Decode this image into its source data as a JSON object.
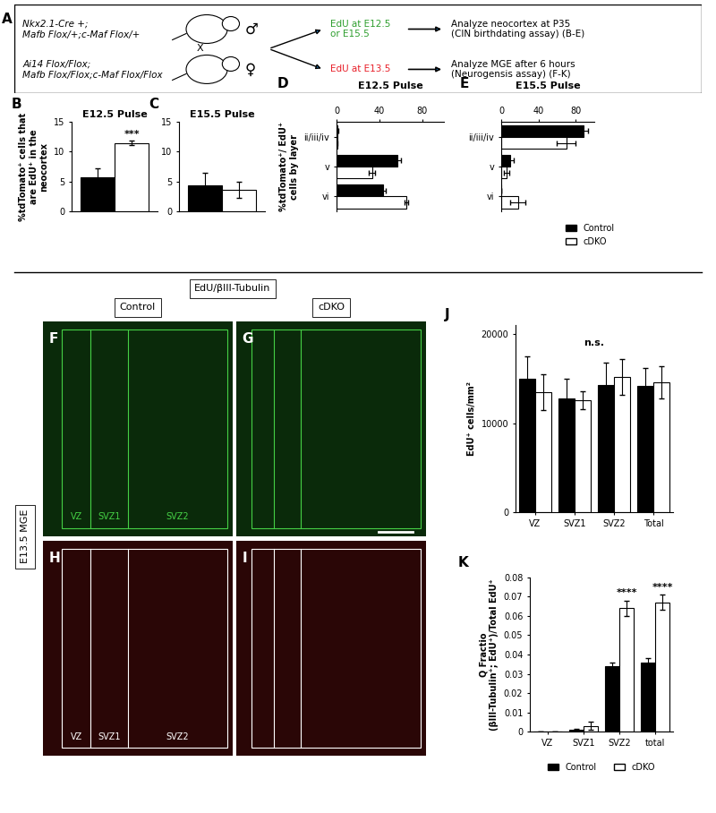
{
  "schematic": {
    "panel": "A",
    "male": {
      "genotype": "Nkx2.1-Cre +;\nMafb Flox/+;c-Maf Flox/+",
      "symbol": "♂"
    },
    "cross": "X",
    "female": {
      "genotype": "Ai14 Flox/Flox;\nMafb Flox/Flox;c-Maf Flox/Flox",
      "symbol": "♀"
    },
    "pulses": [
      {
        "text": "EdU at E12.5\nor E15.5",
        "color": "#2e9e2e",
        "result": "Analyze neocortex at P35\n(CIN birthdating assay) (B-E)"
      },
      {
        "text": "EdU at E13.5",
        "color": "#e8202a",
        "result": "Analyze MGE after 6 hours\n(Neurogensis assay) (F-K)"
      }
    ]
  },
  "images": {
    "header": "EdU/βIII-Tubulin",
    "columns": [
      "Control",
      "cDKO"
    ],
    "row_label": "E13.5 MGE",
    "panels": [
      {
        "panel": "F",
        "zones": [
          "VZ",
          "SVZ1",
          "SVZ2"
        ]
      },
      {
        "panel": "G"
      },
      {
        "panel": "H",
        "zones": [
          "VZ",
          "SVZ1",
          "SVZ2"
        ]
      },
      {
        "panel": "I"
      }
    ]
  },
  "chart_data": [
    {
      "panel": "B",
      "type": "bar",
      "title": "E12.5 Pulse",
      "ylabel": "%tdTomato⁺ cells that\nare EdU⁺ in the\nneocortex",
      "categories": [
        null
      ],
      "series": [
        {
          "name": "Control",
          "color": "#000000",
          "values": [
            5.7
          ],
          "errors": [
            1.5
          ]
        },
        {
          "name": "cDKO",
          "color": "#ffffff",
          "values": [
            11.5
          ],
          "errors": [
            0.4
          ]
        }
      ],
      "ylim": [
        0,
        15
      ],
      "yticks": [
        0,
        5,
        10,
        15
      ],
      "annotations": [
        {
          "text": "***",
          "series": "cDKO",
          "index": 0
        }
      ]
    },
    {
      "panel": "C",
      "type": "bar",
      "title": "E15.5 Pulse",
      "categories": [
        null
      ],
      "series": [
        {
          "name": "Control",
          "color": "#000000",
          "values": [
            4.3
          ],
          "errors": [
            2.2
          ]
        },
        {
          "name": "cDKO",
          "color": "#ffffff",
          "values": [
            3.6
          ],
          "errors": [
            1.3
          ]
        }
      ],
      "ylim": [
        0,
        15
      ],
      "yticks": [
        0,
        5,
        10,
        15
      ]
    },
    {
      "panel": "D",
      "type": "bar",
      "orientation": "horizontal",
      "title": "E12.5 Pulse",
      "ylabel": "%tdTomato⁺/ EdU⁺\ncells by layer",
      "categories": [
        "ii/iii/iv",
        "v",
        "vi"
      ],
      "series": [
        {
          "name": "Control",
          "color": "#000000",
          "values": [
            1,
            57,
            43
          ],
          "errors": [
            0.5,
            3,
            3
          ]
        },
        {
          "name": "cDKO",
          "color": "#ffffff",
          "values": [
            0.5,
            33,
            65
          ],
          "errors": [
            0.5,
            3,
            2
          ]
        }
      ],
      "xlim": [
        0,
        100
      ],
      "xticks": [
        0,
        40,
        80
      ]
    },
    {
      "panel": "E",
      "type": "bar",
      "orientation": "horizontal",
      "title": "E15.5 Pulse",
      "categories": [
        "ii/iii/iv",
        "v",
        "vi"
      ],
      "series": [
        {
          "name": "Control",
          "color": "#000000",
          "values": [
            88,
            10,
            0
          ],
          "errors": [
            5,
            3,
            0
          ]
        },
        {
          "name": "cDKO",
          "color": "#ffffff",
          "values": [
            70,
            6,
            18
          ],
          "errors": [
            10,
            3,
            8
          ]
        }
      ],
      "xlim": [
        0,
        100
      ],
      "xticks": [
        0,
        40,
        80
      ],
      "legend": "upper right"
    },
    {
      "panel": "J",
      "type": "bar",
      "ylabel": "EdU⁺ cells/mm²",
      "categories": [
        "VZ",
        "SVZ1",
        "SVZ2",
        "Total"
      ],
      "series": [
        {
          "name": "Control",
          "color": "#000000",
          "values": [
            15000,
            12800,
            14300,
            14200
          ],
          "errors": [
            2500,
            2200,
            2500,
            2000
          ]
        },
        {
          "name": "cDKO",
          "color": "#ffffff",
          "values": [
            13500,
            12600,
            15200,
            14600
          ],
          "errors": [
            2000,
            1000,
            2000,
            1800
          ]
        }
      ],
      "ylim": [
        0,
        21000
      ],
      "yticks": [
        0,
        10000,
        20000
      ],
      "annotations": [
        {
          "text": "n.s."
        }
      ]
    },
    {
      "panel": "K",
      "type": "bar",
      "ylabel": "Q Fractio\n(βIII-Tubulin⁺; EdU⁺)/Total EdU⁺",
      "categories": [
        "VZ",
        "SVZ1",
        "SVZ2",
        "total"
      ],
      "series": [
        {
          "name": "Control",
          "color": "#000000",
          "values": [
            0,
            0.001,
            0.034,
            0.036
          ],
          "errors": [
            0,
            0.0005,
            0.002,
            0.002
          ]
        },
        {
          "name": "cDKO",
          "color": "#ffffff",
          "values": [
            0,
            0.003,
            0.064,
            0.067
          ],
          "errors": [
            0,
            0.002,
            0.004,
            0.004
          ]
        }
      ],
      "ylim": [
        0,
        0.08
      ],
      "yticks": [
        0,
        0.01,
        0.02,
        0.03,
        0.04,
        0.05,
        0.06,
        0.07,
        0.08
      ],
      "legend": "upper center",
      "annotations": [
        {
          "text": "****",
          "series": "cDKO",
          "index": 2
        },
        {
          "text": "****",
          "series": "cDKO",
          "index": 3
        }
      ]
    }
  ]
}
